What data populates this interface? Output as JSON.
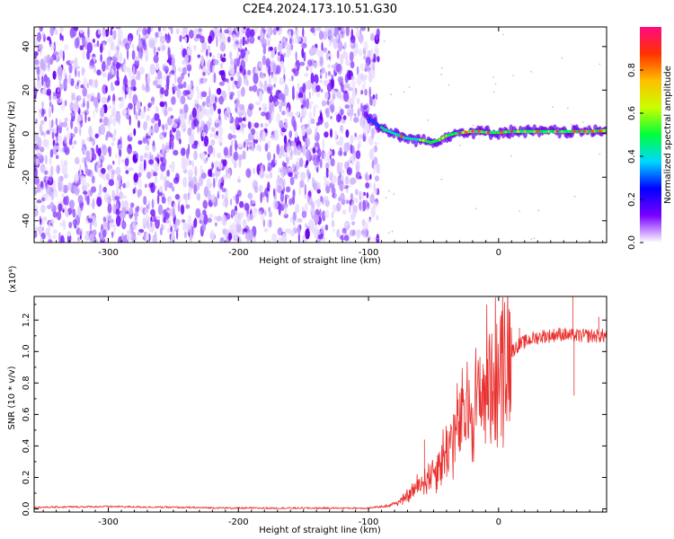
{
  "title": "C2E4.2024.173.10.51.G30",
  "chart_data": [
    {
      "type": "heatmap",
      "name": "spectrogram",
      "xlabel": "Height of straight line (km)",
      "ylabel": "Frequency (Hz)",
      "xlim": [
        -357,
        83
      ],
      "ylim": [
        -50,
        49
      ],
      "xticks": [
        -300,
        -200,
        -100,
        0
      ],
      "xtick_labels": [
        "-300",
        "-200",
        "-100",
        "0"
      ],
      "yticks": [
        -40,
        -20,
        0,
        20,
        40
      ],
      "ytick_labels": [
        "-40",
        "-20",
        "0",
        "20",
        "40"
      ],
      "noise_region_x": [
        -357,
        -98
      ],
      "signal_trace": {
        "x": [
          -102,
          -95,
          -88,
          -80,
          -72,
          -65,
          -58,
          -52,
          -46,
          -40,
          -34,
          -28,
          -22,
          -15,
          -8,
          0,
          10,
          20,
          30,
          40,
          50,
          60,
          70,
          83
        ],
        "y": [
          8,
          5,
          2,
          0,
          -2,
          -2.5,
          -3,
          -4,
          -3,
          -1,
          0,
          0.5,
          1,
          1,
          0.5,
          0.5,
          1,
          1,
          1,
          1,
          1,
          1,
          1,
          1.5
        ]
      }
    },
    {
      "type": "colorbar",
      "name": "colorbar",
      "label": "Normalized spectral amplitude",
      "range": [
        0,
        1
      ],
      "ticks": [
        0.0,
        0.2,
        0.4,
        0.6,
        0.8
      ],
      "tick_labels": [
        "0.0",
        "0.2",
        "0.4",
        "0.6",
        "0.8"
      ],
      "stops": [
        "#ffffff",
        "#7a00ff",
        "#0000ff",
        "#00d8ff",
        "#00ff3c",
        "#c8ff00",
        "#ffbf00",
        "#ff3200",
        "#ff0a82"
      ]
    },
    {
      "type": "line",
      "name": "snr",
      "xlabel": "Height of straight line (km)",
      "ylabel": "SNR (10 * v/v)",
      "multiplier_label": "(x10⁴)",
      "xlim": [
        -357,
        83
      ],
      "ylim": [
        -0.02,
        1.35
      ],
      "xticks": [
        -300,
        -200,
        -100,
        0
      ],
      "xtick_labels": [
        "-300",
        "-200",
        "-100",
        "0"
      ],
      "yticks": [
        0.0,
        0.2,
        0.4,
        0.6,
        0.8,
        1.0,
        1.2
      ],
      "ytick_labels": [
        "0.0",
        "0.2",
        "0.4",
        "0.6",
        "0.8",
        "1.0",
        "1.2"
      ],
      "color": "#e8302e",
      "envelope": {
        "x": [
          -357,
          -300,
          -200,
          -100,
          -85,
          -75,
          -70,
          -65,
          -60,
          -55,
          -50,
          -45,
          -40,
          -35,
          -30,
          -25,
          -20,
          -15,
          -10,
          -5,
          0,
          5,
          10,
          15,
          20,
          25,
          30,
          35,
          40,
          45,
          50,
          55,
          60,
          65,
          70,
          75,
          83
        ],
        "y": [
          0.01,
          0.015,
          0.005,
          0.005,
          0.02,
          0.05,
          0.08,
          0.12,
          0.16,
          0.2,
          0.24,
          0.3,
          0.38,
          0.46,
          0.54,
          0.6,
          0.65,
          0.72,
          0.78,
          0.84,
          0.9,
          0.95,
          1.0,
          1.04,
          1.06,
          1.08,
          1.09,
          1.1,
          1.1,
          1.11,
          1.11,
          1.1,
          1.1,
          1.1,
          1.1,
          1.1,
          1.1
        ]
      },
      "spikes": [
        {
          "x": -57,
          "y": 0.44
        },
        {
          "x": -12,
          "y": 0.92
        },
        {
          "x": 16,
          "y": 1.15
        },
        {
          "x": 57,
          "y": 1.35
        },
        {
          "x": 58,
          "y": 0.72
        },
        {
          "x": 77,
          "y": 1.22
        }
      ]
    }
  ]
}
